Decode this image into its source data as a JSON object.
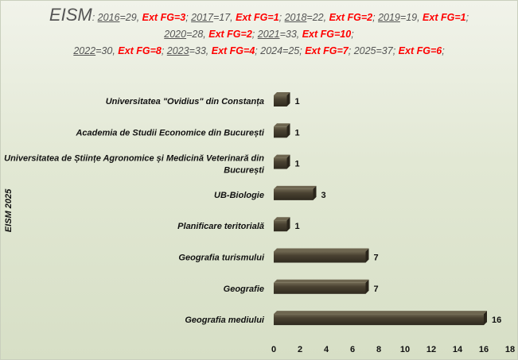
{
  "header": {
    "title": "EISM",
    "line1": [
      {
        "text": ": ",
        "style": ""
      },
      {
        "text": "2016",
        "style": "u"
      },
      {
        "text": "=29, ",
        "style": ""
      },
      {
        "text": "Ext FG=3",
        "style": "red"
      },
      {
        "text": "; ",
        "style": ""
      },
      {
        "text": "2017",
        "style": "u"
      },
      {
        "text": "=17, ",
        "style": ""
      },
      {
        "text": "Ext FG=1",
        "style": "red"
      },
      {
        "text": "; ",
        "style": ""
      },
      {
        "text": "2018",
        "style": "u"
      },
      {
        "text": "=22, ",
        "style": ""
      },
      {
        "text": "Ext FG=2",
        "style": "red"
      },
      {
        "text": "; ",
        "style": ""
      },
      {
        "text": "2019",
        "style": "u"
      },
      {
        "text": "=19, ",
        "style": ""
      },
      {
        "text": "Ext FG=1",
        "style": "red"
      },
      {
        "text": ";",
        "style": ""
      }
    ],
    "line2": [
      {
        "text": "2020",
        "style": "u"
      },
      {
        "text": "=28, ",
        "style": ""
      },
      {
        "text": "Ext FG=2",
        "style": "red"
      },
      {
        "text": "; ",
        "style": ""
      },
      {
        "text": "2021",
        "style": "u"
      },
      {
        "text": "=33, ",
        "style": ""
      },
      {
        "text": "Ext FG=10",
        "style": "red"
      },
      {
        "text": ";",
        "style": ""
      }
    ],
    "line3": [
      {
        "text": "2022",
        "style": "u"
      },
      {
        "text": "=30,  ",
        "style": ""
      },
      {
        "text": "Ext FG=8",
        "style": "red"
      },
      {
        "text": ";  ",
        "style": ""
      },
      {
        "text": "2023",
        "style": "u"
      },
      {
        "text": "=33, ",
        "style": ""
      },
      {
        "text": "Ext FG=4",
        "style": "red"
      },
      {
        "text": "; 2024=25; ",
        "style": ""
      },
      {
        "text": "Ext FG=7",
        "style": "red"
      },
      {
        "text": "; 2025=37; ",
        "style": ""
      },
      {
        "text": "Ext FG=6",
        "style": "red"
      },
      {
        "text": ";",
        "style": ""
      }
    ]
  },
  "colors": {
    "bar": "#4a4232",
    "bar_top": "#6e6650",
    "bar_shadow": "#2a251b"
  },
  "chart_data": {
    "type": "bar",
    "orientation": "horizontal",
    "ylabel": "EISM 2025",
    "categories": [
      "Universitatea \"Ovidius\" din Constanța",
      "Academia de Studii Economice din București",
      "Universitatea de Științe Agronomice și Medicină Veterinară din București",
      "UB-Biologie",
      "Planificare teritorială",
      "Geografia turismului",
      "Geografie",
      "Geografia mediului"
    ],
    "category_lines": [
      [
        "Universitatea \"Ovidius\" din Constanța"
      ],
      [
        "Academia de Studii Economice din București"
      ],
      [
        "Universitatea de Științe Agronomice și Medicină Veterinară din",
        "București"
      ],
      [
        "UB-Biologie"
      ],
      [
        "Planificare teritorială"
      ],
      [
        "Geografia turismului"
      ],
      [
        "Geografie"
      ],
      [
        "Geografia mediului"
      ]
    ],
    "values": [
      1,
      1,
      1,
      3,
      1,
      7,
      7,
      16
    ],
    "xlim": [
      0,
      18
    ],
    "xticks": [
      0,
      2,
      4,
      6,
      8,
      10,
      12,
      14,
      16,
      18
    ],
    "grid": false,
    "legend": "none"
  }
}
